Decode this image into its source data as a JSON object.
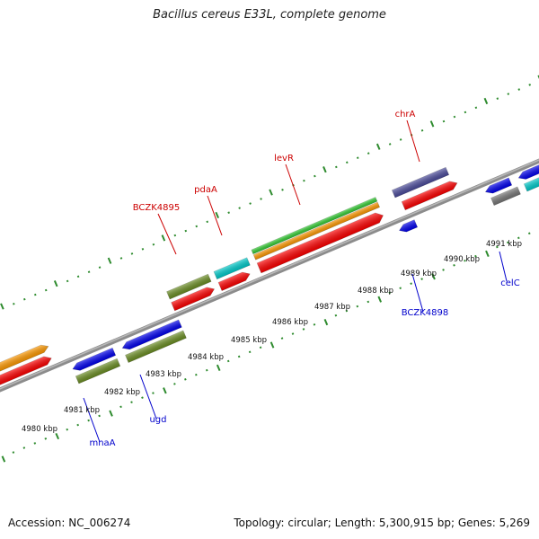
{
  "title": "Bacillus cereus E33L, complete genome",
  "footer": {
    "accession": "Accession: NC_006274",
    "summary": "Topology: circular; Length: 5,300,915 bp; Genes: 5,269"
  },
  "colors": {
    "backbone": "#8c8c8c",
    "tick": "#2e8b2e",
    "label_top": "#cc0000",
    "label_bottom": "#0000cc"
  },
  "kbp_labels": [
    "4980 kbp",
    "4981 kbp",
    "4982 kbp",
    "4983 kbp",
    "4984 kbp",
    "4985 kbp",
    "4986 kbp",
    "4987 kbp",
    "4988 kbp",
    "4989 kbp",
    "4990 kbp",
    "4991 kbp"
  ],
  "gene_labels": [
    {
      "name": "BCZK4895",
      "color": "#cc0000"
    },
    {
      "name": "pdaA",
      "color": "#cc0000"
    },
    {
      "name": "levR",
      "color": "#cc0000"
    },
    {
      "name": "chrA",
      "color": "#cc0000"
    },
    {
      "name": "mnaA",
      "color": "#0000cc"
    },
    {
      "name": "ugd",
      "color": "#0000cc"
    },
    {
      "name": "BCZK4898",
      "color": "#0000cc"
    },
    {
      "name": "celC",
      "color": "#0000cc"
    }
  ],
  "feature_colors": {
    "red": "#ff0000",
    "orange": "#ff9900",
    "green": "#33cc33",
    "cyan": "#00cccc",
    "olive": "#6b8e23",
    "blue": "#0000ee",
    "purple": "#4b4b9b",
    "gray": "#777777"
  }
}
